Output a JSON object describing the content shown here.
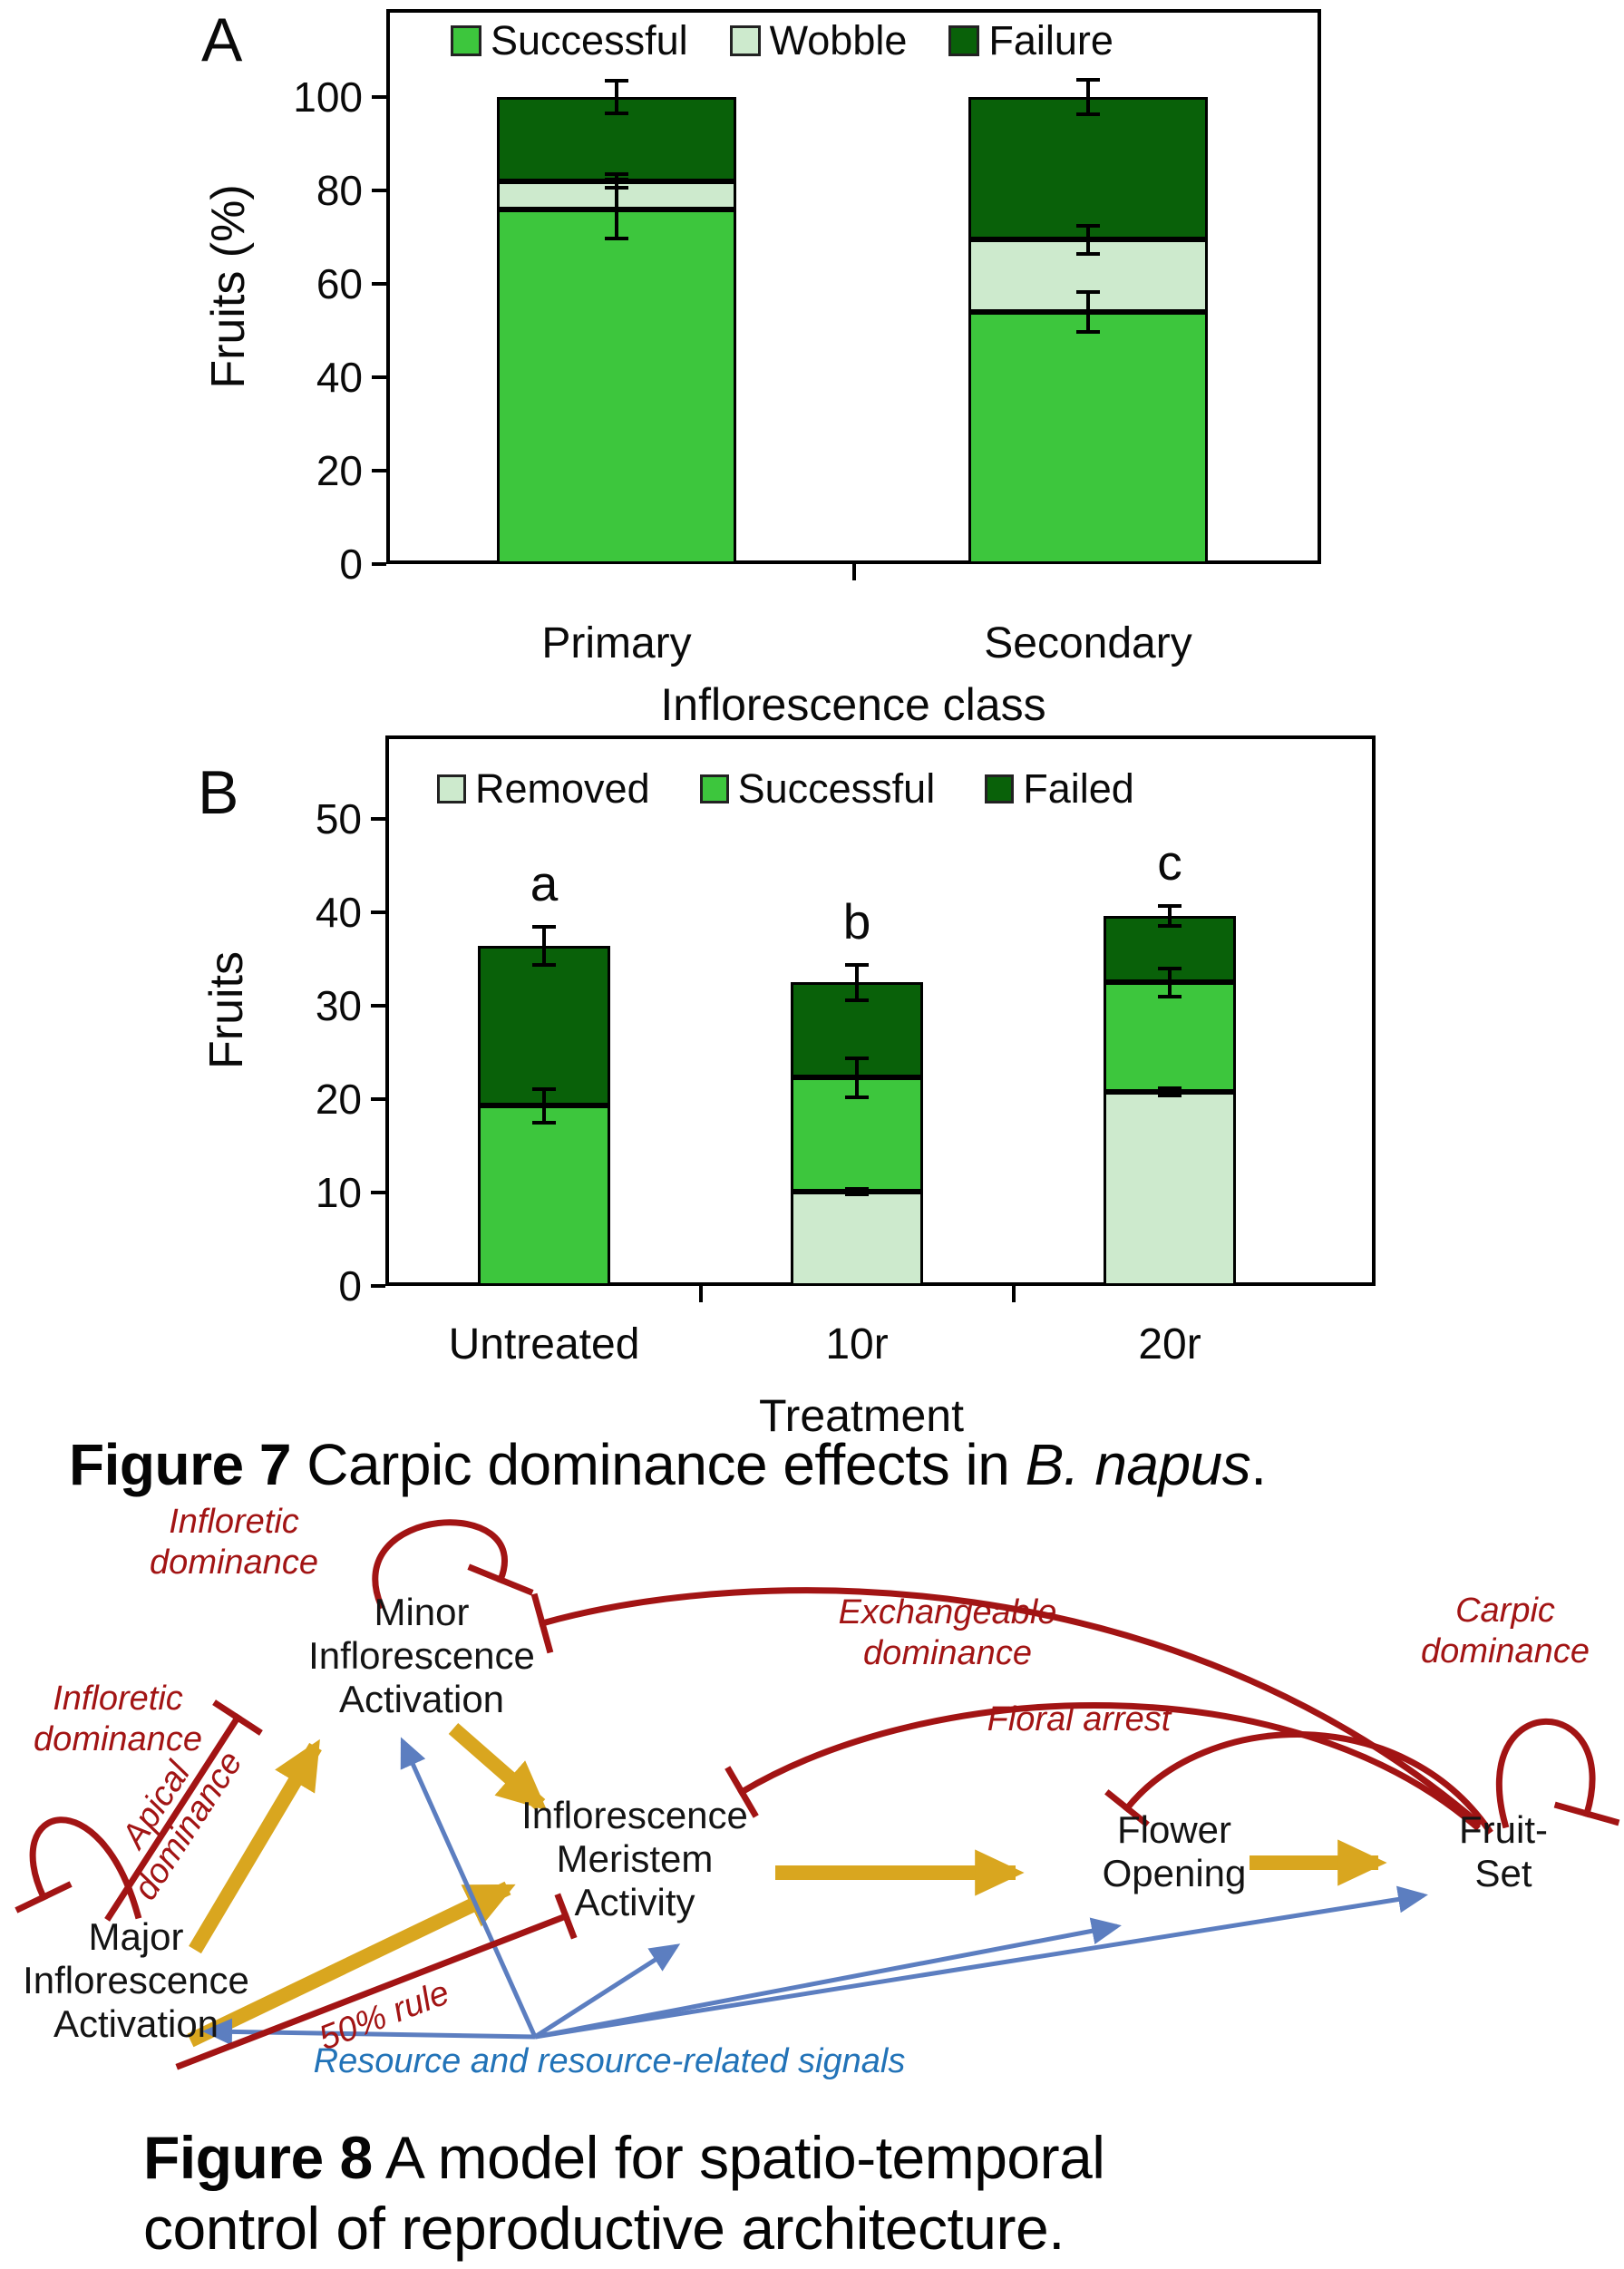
{
  "figure7": {
    "panelA_label": "A",
    "panelB_label": "B",
    "caption_bold": "Figure 7",
    "caption_regular": " Carpic dominance effects in ",
    "caption_italic": "B. napus",
    "caption_end": "."
  },
  "chart_data": [
    {
      "type": "bar",
      "stacked": true,
      "panel": "A",
      "categories": [
        "Primary",
        "Secondary"
      ],
      "series": [
        {
          "name": "Successful",
          "color": "#3dc63d",
          "values": [
            76,
            54
          ]
        },
        {
          "name": "Wobble",
          "color": "#cdeacd",
          "values": [
            6,
            15.5
          ]
        },
        {
          "name": "Failure",
          "color": "#096109",
          "values": [
            18,
            30.5
          ]
        }
      ],
      "error_bars": [
        [
          {
            "at": 76,
            "err": 6.3
          },
          {
            "at": 82,
            "err": 1.5
          },
          {
            "at": 100,
            "err": 3.5
          }
        ],
        [
          {
            "at": 54,
            "err": 4.3
          },
          {
            "at": 69.5,
            "err": 3
          },
          {
            "at": 100,
            "err": 3.6
          }
        ]
      ],
      "yticks": [
        0,
        20,
        40,
        60,
        80,
        100
      ],
      "ylim": [
        0,
        119
      ],
      "xlabel": "Inflorescence class",
      "ylabel": "Fruits (%)",
      "legend_position": "top",
      "grid": false
    },
    {
      "type": "bar",
      "stacked": true,
      "panel": "B",
      "categories": [
        "Untreated",
        "10r",
        "20r"
      ],
      "series": [
        {
          "name": "Removed",
          "color": "#cdeacd",
          "values": [
            0,
            10.1,
            20.8
          ]
        },
        {
          "name": "Successful",
          "color": "#3dc63d",
          "values": [
            19.3,
            12.2,
            11.7
          ]
        },
        {
          "name": "Failed",
          "color": "#096109",
          "values": [
            17.1,
            10.2,
            7.1
          ]
        }
      ],
      "totals": [
        36.4,
        32.5,
        39.6
      ],
      "letters": [
        "a",
        "b",
        "c"
      ],
      "error_bars": [
        [
          {
            "at": 19.3,
            "err": 1.8
          },
          {
            "at": 36.4,
            "err": 2.0
          }
        ],
        [
          {
            "at": 10.1,
            "err": 0.3
          },
          {
            "at": 22.3,
            "err": 2.1
          },
          {
            "at": 32.5,
            "err": 1.9
          }
        ],
        [
          {
            "at": 20.8,
            "err": 0.4
          },
          {
            "at": 32.5,
            "err": 1.5
          },
          {
            "at": 39.6,
            "err": 1.1
          }
        ]
      ],
      "yticks": [
        0,
        10,
        20,
        30,
        40,
        50
      ],
      "ylim": [
        0,
        59
      ],
      "xlabel": "Treatment",
      "ylabel": "Fruits",
      "legend_position": "top",
      "grid": false
    }
  ],
  "figure8": {
    "caption_label": "Figure 8",
    "caption_line1": " A model for spatio-temporal",
    "caption_line2": "control of reproductive architecture.",
    "nodes": {
      "minor": {
        "lines": [
          "Minor",
          "Inflorescence",
          "Activation"
        ]
      },
      "major": {
        "lines": [
          "Major",
          "Inflorescence",
          "Activation"
        ]
      },
      "meristem": {
        "lines": [
          "Inflorescence",
          "Meristem",
          "Activity"
        ]
      },
      "flower": {
        "lines": [
          "Flower",
          "Opening"
        ]
      },
      "fruitset": {
        "lines": [
          "Fruit-",
          "Set"
        ]
      }
    },
    "labels": {
      "infloretic_top": [
        "Infloretic",
        "dominance"
      ],
      "infloretic_left": [
        "Infloretic",
        "dominance"
      ],
      "apical": [
        "Apical",
        "dominance"
      ],
      "exchangeable": [
        "Exchangeable",
        "dominance"
      ],
      "floral_arrest": "Floral arrest",
      "carpic": [
        "Carpic",
        "dominance"
      ],
      "rule50": "50% rule",
      "resource": "Resource and resource-related signals"
    },
    "colors": {
      "inhibition": "#a21414",
      "promotion": "#d9a61f",
      "resource_line": "#5c7ec0",
      "resource_text": "#2273b8"
    }
  }
}
